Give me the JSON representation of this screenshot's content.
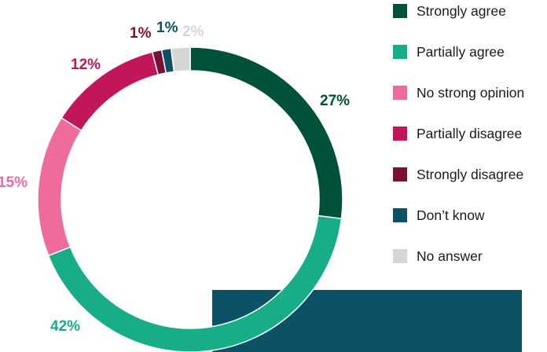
{
  "chart_data": {
    "type": "pie",
    "donut": true,
    "title": "",
    "legend_position": "right",
    "categories": [
      "Strongly agree",
      "Partially agree",
      "No strong opinion",
      "Partially disagree",
      "Strongly disagree",
      "Don’t know",
      "No answer"
    ],
    "values": [
      27,
      42,
      15,
      12,
      1,
      1,
      2
    ],
    "value_labels": [
      "27%",
      "42%",
      "15%",
      "12%",
      "",
      "1%",
      "2%"
    ],
    "extra_labels": [
      "1%"
    ],
    "colors": [
      "#00513a",
      "#16ad87",
      "#ef6b9b",
      "#c1175a",
      "#7c1138",
      "#0b5265",
      "#d6d6d6"
    ]
  },
  "decoration": {
    "bar_color": "#0b5265"
  }
}
